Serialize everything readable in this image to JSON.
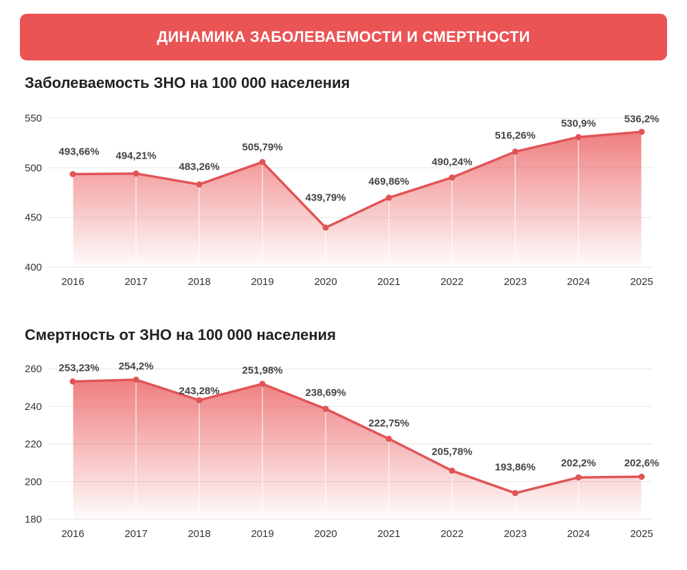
{
  "header": {
    "title": "ДИНАМИКА ЗАБОЛЕВАЕМОСТИ И СМЕРТНОСТИ"
  },
  "colors": {
    "accent": "#EA5455",
    "line": "#E05456",
    "grid": "#E6E6E6",
    "text": "#333333"
  },
  "chart_data": [
    {
      "type": "area",
      "title": "Заболеваемость ЗНО на 100 000 населения",
      "categories": [
        "2016",
        "2017",
        "2018",
        "2019",
        "2020",
        "2021",
        "2022",
        "2023",
        "2024",
        "2025"
      ],
      "values": [
        493.66,
        494.21,
        483.26,
        505.79,
        439.79,
        469.86,
        490.24,
        516.26,
        530.9,
        536.2
      ],
      "data_labels": [
        "493,66%",
        "494,21%",
        "483,26%",
        "505,79%",
        "439,79%",
        "469,86%",
        "490,24%",
        "516,26%",
        "530,9%",
        "536,2%"
      ],
      "ylim": [
        400,
        550
      ],
      "yticks": [
        400,
        450,
        500,
        550
      ],
      "grid": "horizontal"
    },
    {
      "type": "area",
      "title": "Смертность от ЗНО на 100 000 населения",
      "categories": [
        "2016",
        "2017",
        "2018",
        "2019",
        "2020",
        "2021",
        "2022",
        "2023",
        "2024",
        "2025"
      ],
      "values": [
        253.23,
        254.2,
        243.28,
        251.98,
        238.69,
        222.75,
        205.78,
        193.86,
        202.2,
        202.6
      ],
      "data_labels": [
        "253,23%",
        "254,2%",
        "243,28%",
        "251,98%",
        "238,69%",
        "222,75%",
        "205,78%",
        "193,86%",
        "202,2%",
        "202,6%"
      ],
      "ylim": [
        180,
        260
      ],
      "yticks": [
        180,
        200,
        220,
        240,
        260
      ],
      "grid": "horizontal"
    }
  ]
}
